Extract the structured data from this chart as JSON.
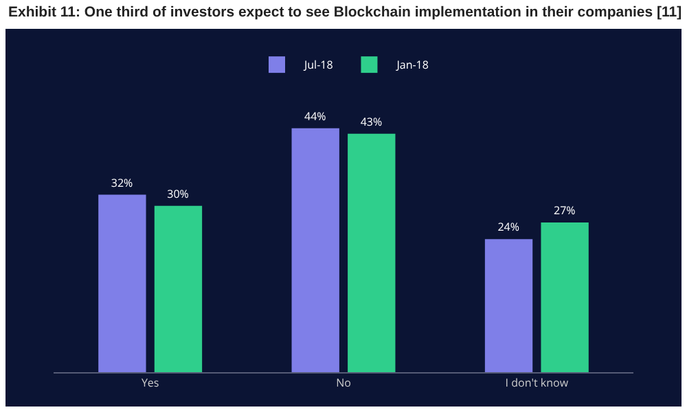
{
  "chart_data": {
    "type": "bar",
    "title": "Exhibit 11: One third of investors expect to see Blockchain implementation in their companies [11]",
    "categories": [
      "Yes",
      "No",
      "I don't know"
    ],
    "series": [
      {
        "name": "Jul-18",
        "color": "#7f7fe8",
        "values": [
          32,
          44,
          24
        ],
        "value_labels": [
          "32%",
          "44%",
          "24%"
        ]
      },
      {
        "name": "Jan-18",
        "color": "#2fcf8c",
        "values": [
          30,
          43,
          27
        ],
        "value_labels": [
          "30%",
          "43%",
          "27%"
        ]
      }
    ],
    "legend": "top",
    "grid": false
  }
}
